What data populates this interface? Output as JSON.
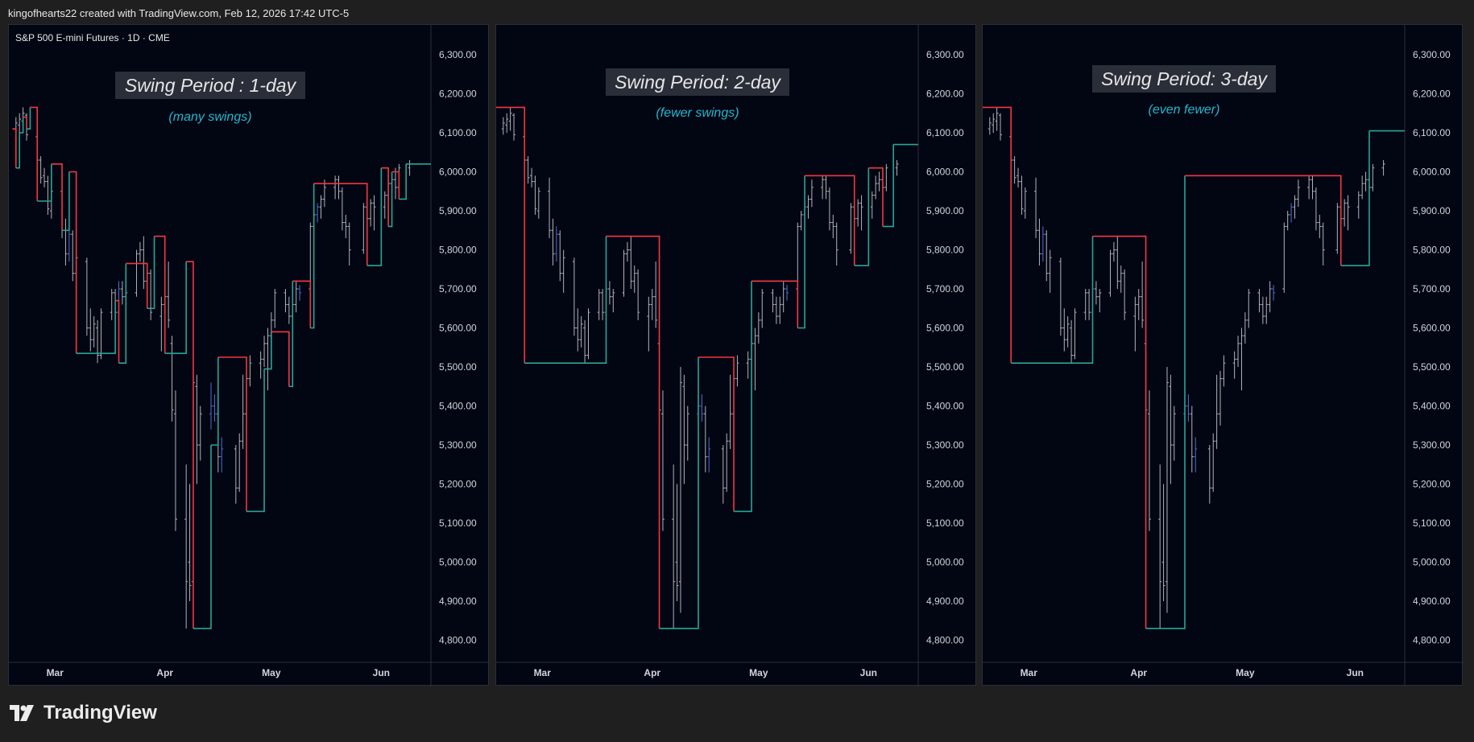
{
  "header": {
    "attribution": "kingofhearts22 created with TradingView.com, Feb 12, 2026 17:42 UTC-5"
  },
  "brand": {
    "name": "TradingView",
    "icon": "tradingview-logo-icon"
  },
  "colors": {
    "background": "#020612",
    "up": "#26a69a",
    "down": "#f23645",
    "title_bg": "#2a2e39",
    "subtitle": "#22b8cf",
    "bar": "#b0b3bc",
    "bar_blue": "#4f6fd8"
  },
  "chart_data": [
    {
      "type": "line",
      "symbol": "S&P 500 E-mini Futures · 1D · CME",
      "title": "Swing Period : 1-day",
      "subtitle": "(many swings)",
      "xlabel": "",
      "ylabel": "",
      "x_ticks": [
        "Mar",
        "Apr",
        "May",
        "Jun"
      ],
      "y_ticks": [
        "6,300.00",
        "6,200.00",
        "6,100.00",
        "6,000.00",
        "5,900.00",
        "5,800.00",
        "5,700.00",
        "5,600.00",
        "5,500.00",
        "5,400.00",
        "5,300.00",
        "5,200.00",
        "5,100.00",
        "5,000.00",
        "4,900.00",
        "4,800.00"
      ],
      "ylim": [
        4750,
        6330
      ],
      "x_range": [
        "2025-02-16",
        "2025-06-15"
      ],
      "swing_line": [
        [
          "2025-02-17",
          6110,
          "d"
        ],
        [
          "2025-02-18",
          6010,
          "u"
        ],
        [
          "2025-02-19",
          6100,
          "u"
        ],
        [
          "2025-02-20",
          6140,
          "d"
        ],
        [
          "2025-02-21",
          6110,
          "u"
        ],
        [
          "2025-02-22",
          6165,
          "d"
        ],
        [
          "2025-02-24",
          5925,
          "u"
        ],
        [
          "2025-02-28",
          6020,
          "d"
        ],
        [
          "2025-03-03",
          5850,
          "u"
        ],
        [
          "2025-03-05",
          6000,
          "d"
        ],
        [
          "2025-03-07",
          5535,
          "u"
        ],
        [
          "2025-03-18",
          5670,
          "d"
        ],
        [
          "2025-03-19",
          5510,
          "u"
        ],
        [
          "2025-03-21",
          5765,
          "d"
        ],
        [
          "2025-03-27",
          5650,
          "u"
        ],
        [
          "2025-03-29",
          5835,
          "d"
        ],
        [
          "2025-04-01",
          5535,
          "u"
        ],
        [
          "2025-04-07",
          5770,
          "d"
        ],
        [
          "2025-04-09",
          4830,
          "u"
        ],
        [
          "2025-04-14",
          5300,
          "u"
        ],
        [
          "2025-04-16",
          5525,
          "d"
        ],
        [
          "2025-04-24",
          5130,
          "u"
        ],
        [
          "2025-04-29",
          5495,
          "u"
        ],
        [
          "2025-05-01",
          5590,
          "d"
        ],
        [
          "2025-05-06",
          5450,
          "u"
        ],
        [
          "2025-05-07",
          5720,
          "d"
        ],
        [
          "2025-05-12",
          5600,
          "u"
        ],
        [
          "2025-05-13",
          5970,
          "d"
        ],
        [
          "2025-05-28",
          5760,
          "u"
        ],
        [
          "2025-06-01",
          6010,
          "d"
        ],
        [
          "2025-06-03",
          5860,
          "u"
        ],
        [
          "2025-06-04",
          6000,
          "d"
        ],
        [
          "2025-06-06",
          5930,
          "u"
        ],
        [
          "2025-06-08",
          6020,
          "u"
        ],
        [
          "2025-06-15",
          6020,
          "u"
        ]
      ]
    },
    {
      "type": "line",
      "symbol": "",
      "title": "Swing Period: 2-day",
      "subtitle": "(fewer swings)",
      "xlabel": "",
      "ylabel": "",
      "x_ticks": [
        "Mar",
        "Apr",
        "May",
        "Jun"
      ],
      "y_ticks": [
        "6,300.00",
        "6,200.00",
        "6,100.00",
        "6,000.00",
        "5,900.00",
        "5,800.00",
        "5,700.00",
        "5,600.00",
        "5,500.00",
        "5,400.00",
        "5,300.00",
        "5,200.00",
        "5,100.00",
        "5,000.00",
        "4,900.00",
        "4,800.00"
      ],
      "ylim": [
        4750,
        6330
      ],
      "x_range": [
        "2025-02-16",
        "2025-06-15"
      ],
      "swing_line": [
        [
          "2025-02-16",
          6165,
          "d"
        ],
        [
          "2025-02-24",
          5510,
          "u"
        ],
        [
          "2025-03-19",
          5835,
          "d"
        ],
        [
          "2025-04-03",
          4830,
          "u"
        ],
        [
          "2025-04-14",
          5525,
          "d"
        ],
        [
          "2025-04-24",
          5130,
          "u"
        ],
        [
          "2025-04-29",
          5720,
          "d"
        ],
        [
          "2025-05-12",
          5600,
          "u"
        ],
        [
          "2025-05-14",
          5990,
          "d"
        ],
        [
          "2025-05-28",
          5760,
          "u"
        ],
        [
          "2025-06-01",
          6010,
          "d"
        ],
        [
          "2025-06-05",
          5860,
          "u"
        ],
        [
          "2025-06-08",
          6070,
          "u"
        ],
        [
          "2025-06-15",
          6070,
          "u"
        ]
      ]
    },
    {
      "type": "line",
      "symbol": "",
      "title": "Swing Period: 3-day",
      "subtitle": "(even fewer)",
      "xlabel": "",
      "ylabel": "",
      "x_ticks": [
        "Mar",
        "Apr",
        "May",
        "Jun"
      ],
      "y_ticks": [
        "6,300.00",
        "6,200.00",
        "6,100.00",
        "6,000.00",
        "5,900.00",
        "5,800.00",
        "5,700.00",
        "5,600.00",
        "5,500.00",
        "5,400.00",
        "5,300.00",
        "5,200.00",
        "5,100.00",
        "5,000.00",
        "4,900.00",
        "4,800.00"
      ],
      "ylim": [
        4750,
        6330
      ],
      "x_range": [
        "2025-02-16",
        "2025-06-15"
      ],
      "swing_line": [
        [
          "2025-02-16",
          6165,
          "d"
        ],
        [
          "2025-02-24",
          5510,
          "u"
        ],
        [
          "2025-03-19",
          5835,
          "d"
        ],
        [
          "2025-04-03",
          4830,
          "u"
        ],
        [
          "2025-04-14",
          5990,
          "d"
        ],
        [
          "2025-05-28",
          5760,
          "u"
        ],
        [
          "2025-06-05",
          6105,
          "u"
        ],
        [
          "2025-06-15",
          6105,
          "u"
        ]
      ]
    }
  ],
  "ohlc": [
    [
      "2025-02-14",
      6085,
      6100,
      6060,
      6095,
      "w"
    ],
    [
      "2025-02-15",
      6095,
      6115,
      6070,
      6090,
      "w"
    ],
    [
      "2025-02-18",
      6110,
      6140,
      6095,
      6125,
      "w"
    ],
    [
      "2025-02-19",
      6120,
      6150,
      6100,
      6135,
      "w"
    ],
    [
      "2025-02-20",
      6130,
      6165,
      6105,
      6150,
      "w"
    ],
    [
      "2025-02-21",
      6145,
      6150,
      6080,
      6095,
      "w"
    ],
    [
      "2025-02-24",
      6090,
      6105,
      6010,
      6030,
      "w"
    ],
    [
      "2025-02-25",
      6030,
      6040,
      5970,
      5985,
      "w"
    ],
    [
      "2025-02-26",
      5990,
      6010,
      5960,
      5975,
      "w"
    ],
    [
      "2025-02-27",
      5975,
      5990,
      5890,
      5905,
      "w"
    ],
    [
      "2025-02-28",
      5900,
      5960,
      5880,
      5950,
      "w"
    ],
    [
      "2025-03-03",
      5950,
      5985,
      5830,
      5850,
      "w"
    ],
    [
      "2025-03-04",
      5850,
      5880,
      5760,
      5790,
      "w"
    ],
    [
      "2025-03-05",
      5790,
      5860,
      5770,
      5840,
      "b"
    ],
    [
      "2025-03-06",
      5840,
      5850,
      5720,
      5740,
      "w"
    ],
    [
      "2025-03-07",
      5740,
      5800,
      5690,
      5780,
      "w"
    ],
    [
      "2025-03-10",
      5770,
      5780,
      5580,
      5600,
      "w"
    ],
    [
      "2025-03-11",
      5600,
      5650,
      5540,
      5570,
      "w"
    ],
    [
      "2025-03-12",
      5570,
      5630,
      5550,
      5610,
      "w"
    ],
    [
      "2025-03-13",
      5600,
      5620,
      5510,
      5530,
      "w"
    ],
    [
      "2025-03-14",
      5530,
      5650,
      5520,
      5640,
      "w"
    ],
    [
      "2025-03-17",
      5640,
      5700,
      5620,
      5690,
      "w"
    ],
    [
      "2025-03-18",
      5690,
      5700,
      5620,
      5640,
      "w"
    ],
    [
      "2025-03-19",
      5640,
      5720,
      5620,
      5700,
      "b"
    ],
    [
      "2025-03-20",
      5700,
      5720,
      5660,
      5680,
      "w"
    ],
    [
      "2025-03-21",
      5680,
      5700,
      5640,
      5690,
      "w"
    ],
    [
      "2025-03-24",
      5690,
      5800,
      5680,
      5790,
      "w"
    ],
    [
      "2025-03-25",
      5790,
      5820,
      5770,
      5800,
      "w"
    ],
    [
      "2025-03-26",
      5800,
      5835,
      5700,
      5720,
      "w"
    ],
    [
      "2025-03-27",
      5720,
      5760,
      5690,
      5740,
      "w"
    ],
    [
      "2025-03-28",
      5740,
      5750,
      5620,
      5640,
      "w"
    ],
    [
      "2025-03-31",
      5630,
      5680,
      5540,
      5660,
      "w"
    ],
    [
      "2025-04-01",
      5660,
      5700,
      5620,
      5680,
      "w"
    ],
    [
      "2025-04-02",
      5680,
      5770,
      5600,
      5620,
      "w"
    ],
    [
      "2025-04-03",
      5560,
      5580,
      5360,
      5390,
      "w"
    ],
    [
      "2025-04-04",
      5380,
      5440,
      5080,
      5110,
      "w"
    ],
    [
      "2025-04-07",
      5110,
      5250,
      4830,
      4950,
      "w"
    ],
    [
      "2025-04-08",
      5000,
      5200,
      4900,
      4940,
      "w"
    ],
    [
      "2025-04-09",
      4950,
      5500,
      4870,
      5460,
      "w"
    ],
    [
      "2025-04-10",
      5450,
      5480,
      5200,
      5300,
      "w"
    ],
    [
      "2025-04-11",
      5300,
      5400,
      5260,
      5380,
      "w"
    ],
    [
      "2025-04-14",
      5380,
      5460,
      5340,
      5400,
      "b"
    ],
    [
      "2025-04-15",
      5400,
      5430,
      5360,
      5380,
      "b"
    ],
    [
      "2025-04-16",
      5380,
      5400,
      5230,
      5270,
      "w"
    ],
    [
      "2025-04-17",
      5270,
      5320,
      5230,
      5290,
      "b"
    ],
    [
      "2025-04-21",
      5290,
      5300,
      5150,
      5190,
      "w"
    ],
    [
      "2025-04-22",
      5190,
      5330,
      5180,
      5310,
      "w"
    ],
    [
      "2025-04-23",
      5310,
      5480,
      5290,
      5380,
      "w"
    ],
    [
      "2025-04-24",
      5380,
      5490,
      5350,
      5470,
      "w"
    ],
    [
      "2025-04-25",
      5470,
      5530,
      5450,
      5510,
      "w"
    ],
    [
      "2025-04-28",
      5510,
      5540,
      5470,
      5520,
      "w"
    ],
    [
      "2025-04-29",
      5520,
      5580,
      5500,
      5560,
      "w"
    ],
    [
      "2025-04-30",
      5560,
      5600,
      5440,
      5580,
      "w"
    ],
    [
      "2025-05-01",
      5580,
      5640,
      5560,
      5620,
      "w"
    ],
    [
      "2025-05-02",
      5620,
      5700,
      5600,
      5690,
      "w"
    ],
    [
      "2025-05-05",
      5690,
      5700,
      5640,
      5660,
      "w"
    ],
    [
      "2025-05-06",
      5660,
      5680,
      5610,
      5630,
      "w"
    ],
    [
      "2025-05-07",
      5630,
      5680,
      5610,
      5660,
      "w"
    ],
    [
      "2025-05-08",
      5660,
      5720,
      5640,
      5700,
      "w"
    ],
    [
      "2025-05-09",
      5700,
      5710,
      5670,
      5690,
      "b"
    ],
    [
      "2025-05-12",
      5700,
      5870,
      5690,
      5860,
      "w"
    ],
    [
      "2025-05-13",
      5860,
      5900,
      5850,
      5890,
      "w"
    ],
    [
      "2025-05-14",
      5890,
      5920,
      5870,
      5910,
      "b"
    ],
    [
      "2025-05-15",
      5910,
      5940,
      5880,
      5930,
      "w"
    ],
    [
      "2025-05-16",
      5930,
      5980,
      5910,
      5960,
      "w"
    ],
    [
      "2025-05-19",
      5960,
      5990,
      5930,
      5980,
      "w"
    ],
    [
      "2025-05-20",
      5980,
      5990,
      5930,
      5950,
      "w"
    ],
    [
      "2025-05-21",
      5950,
      5960,
      5850,
      5870,
      "w"
    ],
    [
      "2025-05-22",
      5870,
      5890,
      5830,
      5860,
      "w"
    ],
    [
      "2025-05-23",
      5860,
      5870,
      5760,
      5800,
      "w"
    ],
    [
      "2025-05-27",
      5800,
      5920,
      5790,
      5910,
      "w"
    ],
    [
      "2025-05-28",
      5910,
      5930,
      5870,
      5880,
      "w"
    ],
    [
      "2025-05-29",
      5880,
      5930,
      5860,
      5920,
      "w"
    ],
    [
      "2025-05-30",
      5920,
      5940,
      5850,
      5910,
      "w"
    ],
    [
      "2025-06-02",
      5910,
      5950,
      5880,
      5940,
      "w"
    ],
    [
      "2025-06-03",
      5940,
      5990,
      5930,
      5970,
      "w"
    ],
    [
      "2025-06-04",
      5970,
      6000,
      5950,
      5980,
      "w"
    ],
    [
      "2025-06-05",
      5980,
      6010,
      5930,
      5960,
      "w"
    ],
    [
      "2025-06-06",
      5960,
      6020,
      5950,
      6010,
      "w"
    ],
    [
      "2025-06-09",
      6010,
      6030,
      5990,
      6020,
      "w"
    ]
  ]
}
